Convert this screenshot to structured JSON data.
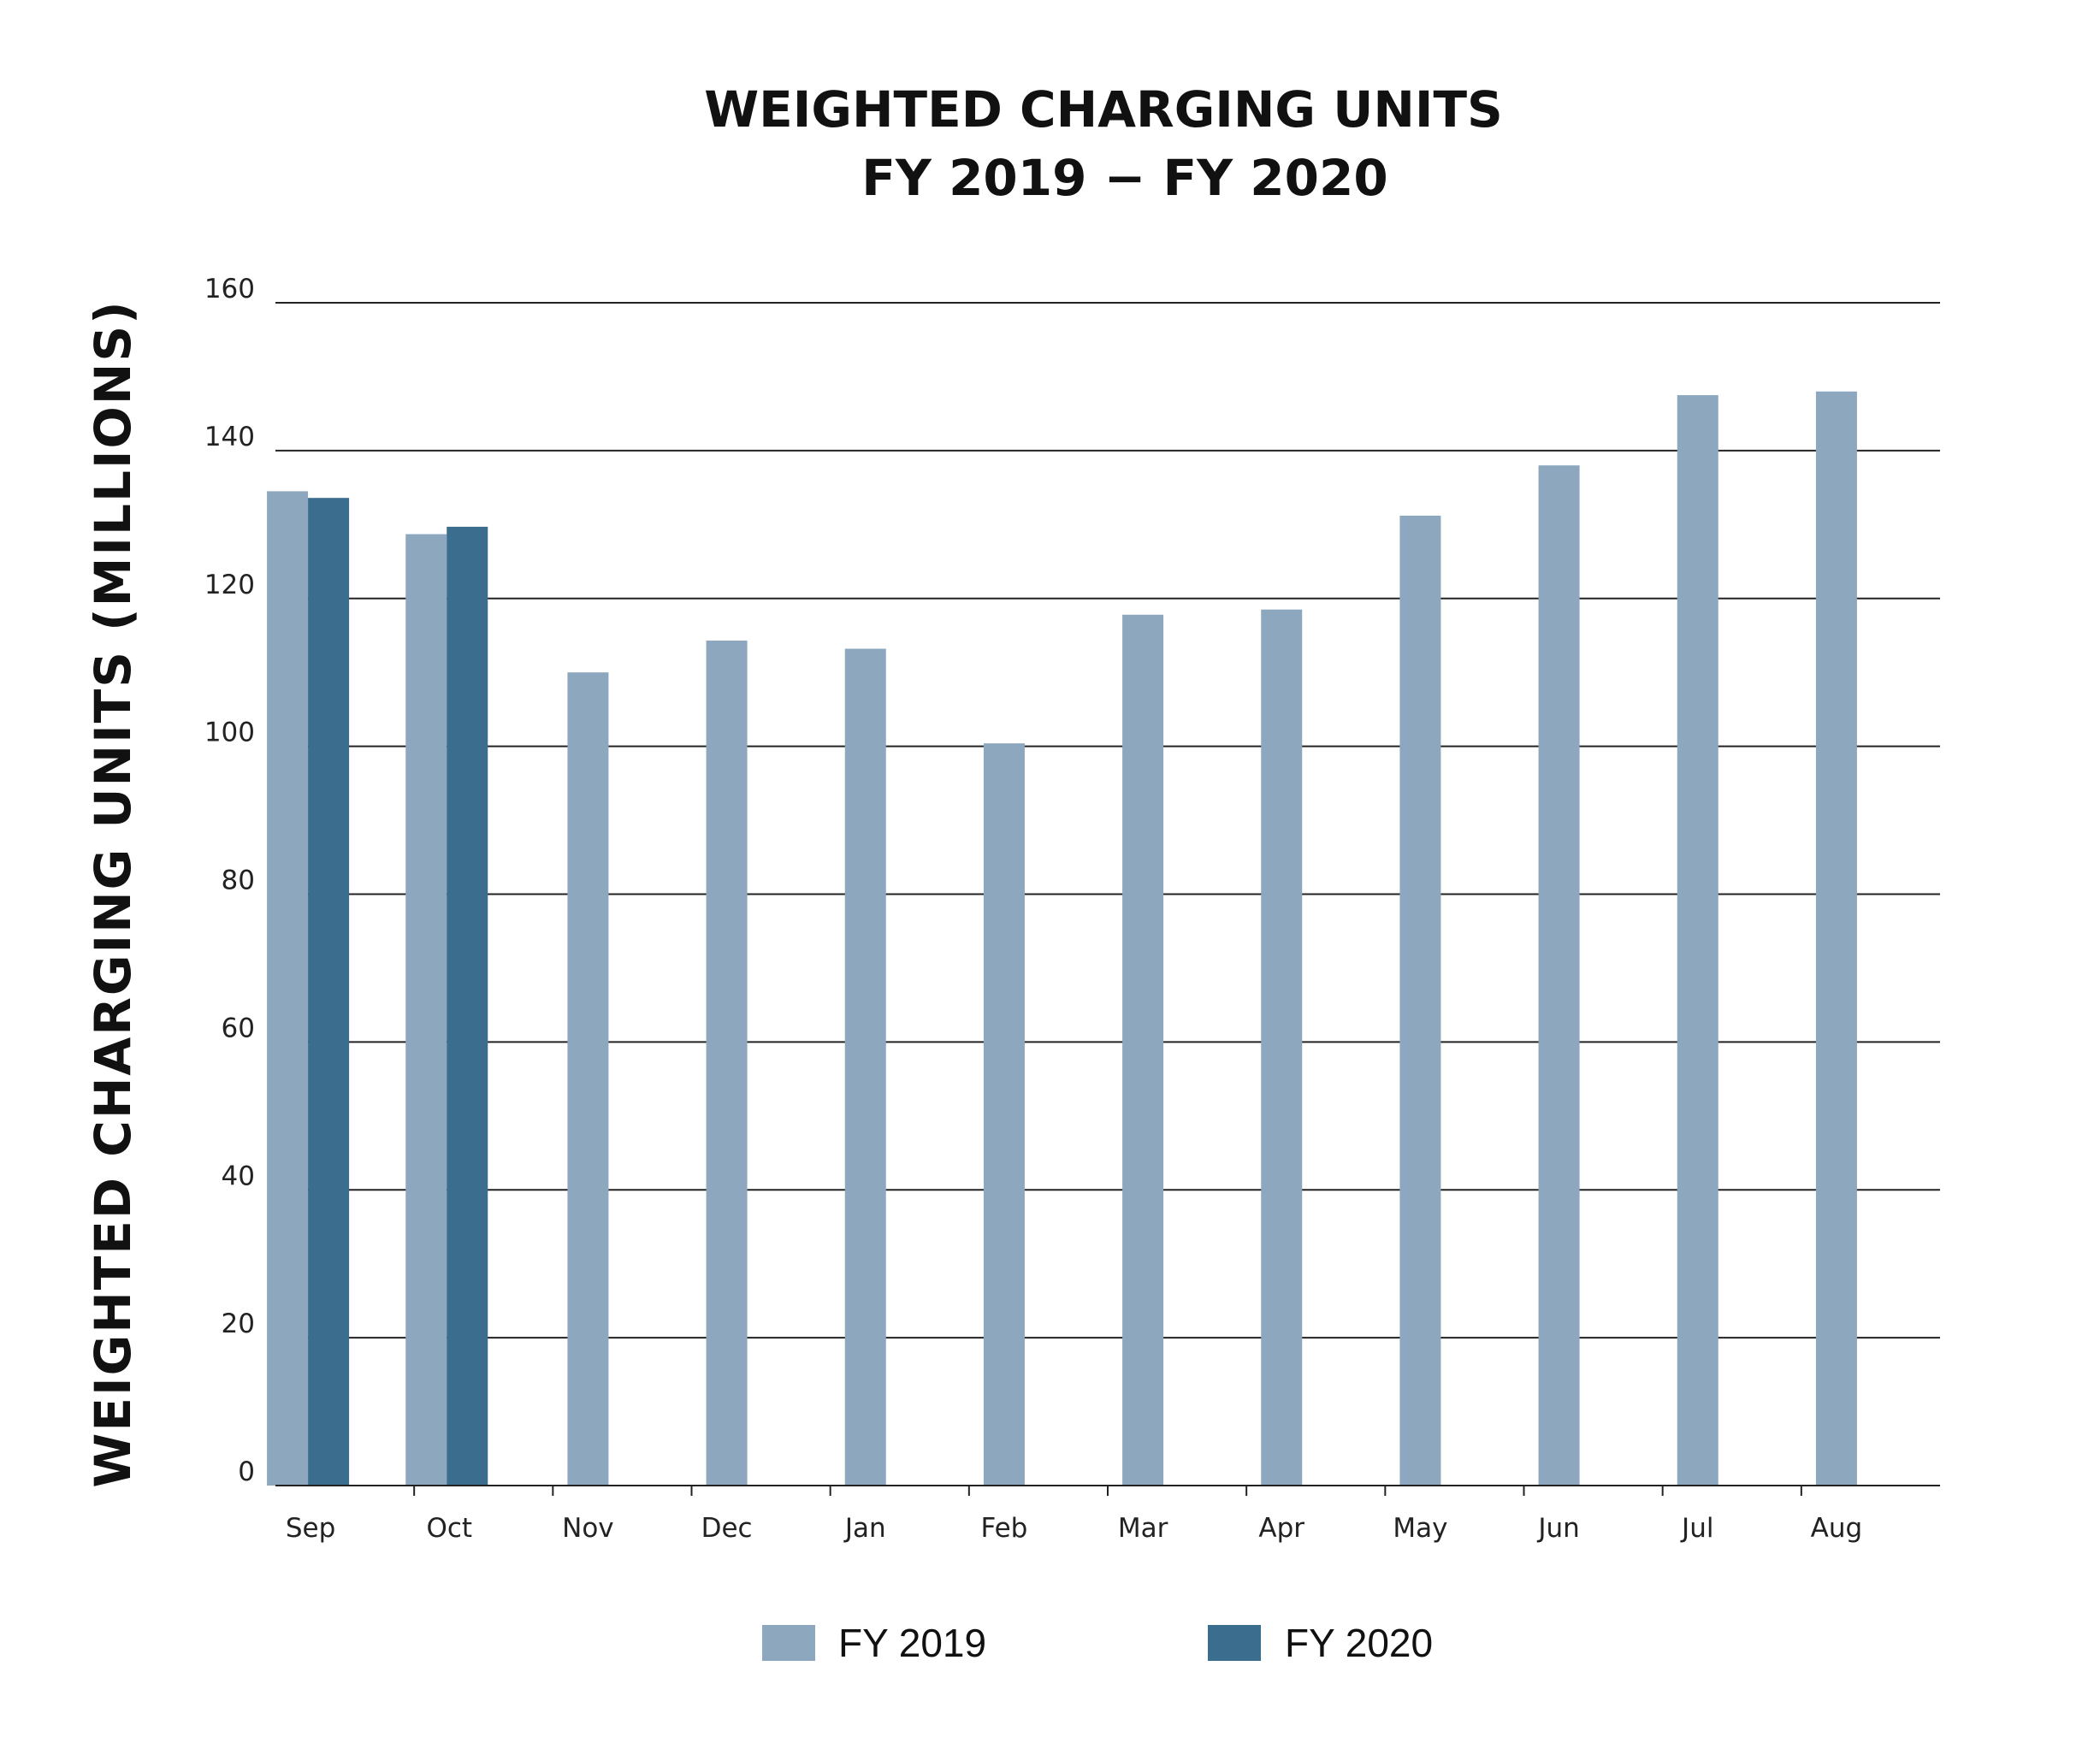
{
  "colors": {
    "fy2019": "#8da7be",
    "fy2020": "#3a6d8e"
  },
  "chart_data": {
    "type": "bar",
    "title": "WEIGHTED CHARGING UNITS",
    "subtitle": "FY 2019 − FY 2020",
    "xlabel": "",
    "ylabel": "WEIGHTED CHARGING UNITS (MILLIONS)",
    "ylim": [
      0,
      160
    ],
    "yticks": [
      "0",
      "20",
      "40",
      "60",
      "80",
      "100",
      "120",
      "140",
      "160"
    ],
    "grid": true,
    "legend_position": "bottom",
    "categories": [
      "Sep",
      "Oct",
      "Nov",
      "Dec",
      "Jan",
      "Feb",
      "Mar",
      "Apr",
      "May",
      "Jun",
      "Jul",
      "Aug"
    ],
    "series": [
      {
        "name": "FY 2019",
        "color": "#8da7be",
        "values": [
          134.5,
          128.7,
          110.0,
          114.3,
          113.2,
          100.4,
          117.8,
          118.5,
          131.2,
          138.0,
          147.5,
          148.0
        ]
      },
      {
        "name": "FY 2020",
        "color": "#3a6d8e",
        "values": [
          133.6,
          129.7,
          null,
          null,
          null,
          null,
          null,
          null,
          null,
          null,
          null,
          null
        ]
      }
    ]
  }
}
